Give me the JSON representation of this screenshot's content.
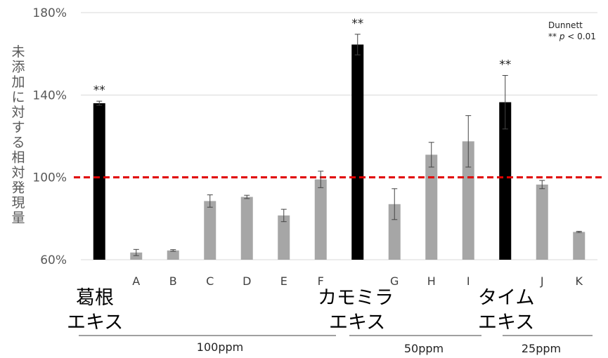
{
  "chart_data": {
    "type": "bar",
    "title": "",
    "ylabel": "未添加に対する相対発現量",
    "ylim": [
      60,
      180
    ],
    "yticks": [
      "60%",
      "100%",
      "140%",
      "180%"
    ],
    "ytick_values": [
      60,
      100,
      140,
      180
    ],
    "grid": true,
    "reference_line": {
      "value": 100,
      "color": "#e00000",
      "style": "dashed"
    },
    "colors": {
      "highlight": "#000000",
      "normal": "#a6a6a6"
    },
    "annotation": {
      "line1": "Dunnett",
      "line2_prefix": "** ",
      "line2_p": "p",
      "line2_suffix": " < 0.01"
    },
    "bars": [
      {
        "label": "",
        "value": 136,
        "error": 1,
        "highlight": true,
        "sig": "**"
      },
      {
        "label": "A",
        "value": 63.5,
        "error": 1.5,
        "highlight": false,
        "sig": ""
      },
      {
        "label": "B",
        "value": 64.5,
        "error": 0.4,
        "highlight": false,
        "sig": ""
      },
      {
        "label": "C",
        "value": 88.5,
        "error": 3,
        "highlight": false,
        "sig": ""
      },
      {
        "label": "D",
        "value": 90.5,
        "error": 0.8,
        "highlight": false,
        "sig": ""
      },
      {
        "label": "E",
        "value": 81.5,
        "error": 3,
        "highlight": false,
        "sig": ""
      },
      {
        "label": "F",
        "value": 99,
        "error": 4,
        "highlight": false,
        "sig": ""
      },
      {
        "label": "",
        "value": 164.5,
        "error": 5,
        "highlight": true,
        "sig": "**"
      },
      {
        "label": "G",
        "value": 87,
        "error": 7.5,
        "highlight": false,
        "sig": ""
      },
      {
        "label": "H",
        "value": 111,
        "error": 6,
        "highlight": false,
        "sig": ""
      },
      {
        "label": "I",
        "value": 117.5,
        "error": 12.5,
        "highlight": false,
        "sig": ""
      },
      {
        "label": "",
        "value": 136.5,
        "error": 13,
        "highlight": true,
        "sig": "**"
      },
      {
        "label": "J",
        "value": 96.5,
        "error": 2,
        "highlight": false,
        "sig": ""
      },
      {
        "label": "K",
        "value": 73.5,
        "error": 0.3,
        "highlight": false,
        "sig": ""
      }
    ],
    "group_labels": [
      {
        "lines": [
          "葛根",
          "エキス"
        ]
      },
      {
        "lines": [
          "カモミラ",
          "エキス"
        ]
      },
      {
        "lines": [
          "タイム",
          "エキス"
        ]
      }
    ],
    "concentrations": [
      "100ppm",
      "50ppm",
      "25ppm"
    ]
  }
}
